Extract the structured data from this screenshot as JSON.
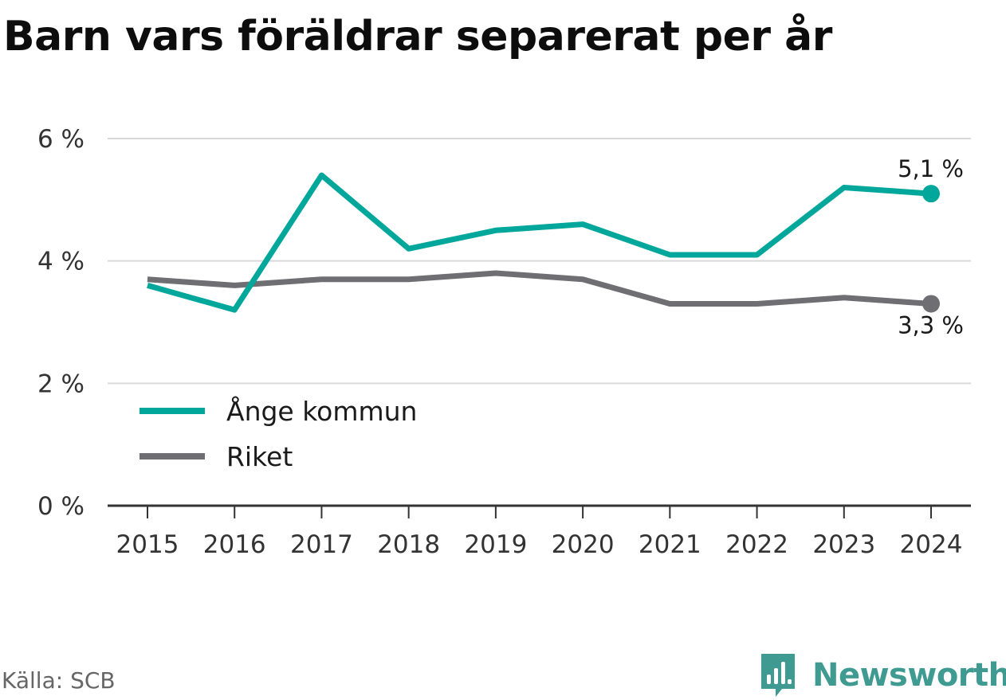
{
  "colors": {
    "accent": "#00a79a",
    "national": "#6e6e73",
    "grid": "#d9d9d9",
    "axis": "#333333",
    "brand": "#3f9b92"
  },
  "brand": {
    "name": "Newsworthy",
    "logo_icon": "bar-chart-bubble-icon"
  },
  "chart_data": {
    "type": "line",
    "title": "Barn vars föräldrar separerat per år",
    "source": "Källa: SCB",
    "x": [
      "2015",
      "2016",
      "2017",
      "2018",
      "2019",
      "2020",
      "2021",
      "2022",
      "2023",
      "2024"
    ],
    "ylim": [
      0,
      6
    ],
    "yticks": [
      0,
      2,
      4,
      6
    ],
    "ytick_labels": [
      "0 %",
      "2 %",
      "4 %",
      "6 %"
    ],
    "grid": true,
    "legend": "lower-left",
    "series": [
      {
        "name": "Ånge kommun",
        "color": "#00a79a",
        "values": [
          3.6,
          3.2,
          5.4,
          4.2,
          4.5,
          4.6,
          4.1,
          4.1,
          5.2,
          5.1
        ],
        "end_label": "5,1 %"
      },
      {
        "name": "Riket",
        "color": "#6e6e73",
        "values": [
          3.7,
          3.6,
          3.7,
          3.7,
          3.8,
          3.7,
          3.3,
          3.3,
          3.4,
          3.3
        ],
        "end_label": "3,3 %"
      }
    ]
  }
}
